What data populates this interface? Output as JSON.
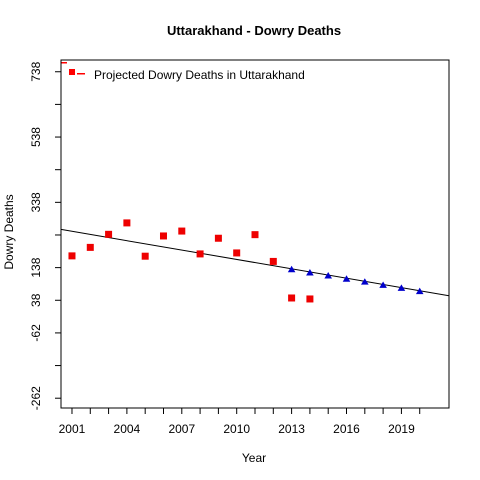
{
  "chart_data": {
    "type": "scatter",
    "title": "Uttarakhand  -  Dowry Deaths",
    "xlabel": "Year",
    "ylabel": "Dowry Deaths",
    "xlim": [
      2000.4,
      2021.6
    ],
    "ylim": [
      -292,
      774
    ],
    "x_ticks": [
      2001,
      2004,
      2007,
      2010,
      2013,
      2016,
      2019
    ],
    "x_tick_labels": [
      "2001",
      "2004",
      "2007",
      "2010",
      "2013",
      "2016",
      "2019"
    ],
    "x_minor_ticks": [
      2001,
      2002,
      2003,
      2004,
      2005,
      2006,
      2007,
      2008,
      2009,
      2010,
      2011,
      2012,
      2013,
      2014,
      2015,
      2016,
      2017,
      2018,
      2019,
      2020
    ],
    "y_ticks": [
      -262,
      -162,
      -62,
      38,
      138,
      238,
      338,
      438,
      538,
      638,
      738
    ],
    "y_tick_labels": [
      "-262",
      "",
      "-62",
      "38",
      "138",
      "",
      "338",
      "",
      "538",
      "",
      "738"
    ],
    "legend": {
      "label": "Projected  Dowry Deaths  in  Uttarakhand",
      "position": "top-left",
      "color": "#ff0000"
    },
    "series": [
      {
        "name": "Projected  Dowry Deaths  in  Uttarakhand",
        "role": "observed",
        "marker": "square",
        "color": "#ee0000",
        "x": [
          2001,
          2002,
          2003,
          2004,
          2005,
          2006,
          2007,
          2008,
          2009,
          2010,
          2011,
          2012,
          2013,
          2014
        ],
        "y": [
          174,
          200,
          240,
          275,
          173,
          235,
          250,
          180,
          228,
          183,
          239,
          157,
          45,
          42
        ]
      },
      {
        "role": "projected",
        "marker": "triangle",
        "color": "#0000cc",
        "x": [
          2013,
          2014,
          2015,
          2016,
          2017,
          2018,
          2019,
          2020
        ],
        "y": [
          132,
          122,
          113,
          103,
          94,
          84,
          75,
          65
        ]
      }
    ],
    "trend_line": {
      "color": "#000000",
      "x": [
        2000.4,
        2021.6
      ],
      "y": [
        255,
        52
      ]
    }
  }
}
